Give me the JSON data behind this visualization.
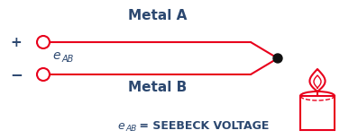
{
  "bg_color": "#ffffff",
  "line_color": "#e8001c",
  "text_color": "#2c4870",
  "figsize": [
    3.97,
    1.55
  ],
  "dpi": 100,
  "plus_label": "+",
  "minus_label": "−",
  "metal_a_label": "Metal A",
  "metal_b_label": "Metal B",
  "eab_e": "e",
  "eab_sub": "AB",
  "bottom_eq": " = SEEBECK VOLTAGE"
}
